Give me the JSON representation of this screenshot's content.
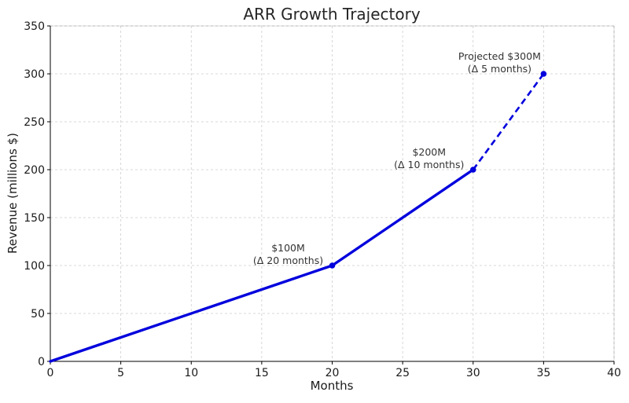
{
  "chart_data": {
    "type": "line",
    "title": "ARR Growth Trajectory",
    "xlabel": "Months",
    "ylabel": "Revenue (millions $)",
    "xlim": [
      0,
      40
    ],
    "ylim": [
      0,
      350
    ],
    "xticks": [
      0,
      5,
      10,
      15,
      20,
      25,
      30,
      35,
      40
    ],
    "yticks": [
      0,
      50,
      100,
      150,
      200,
      250,
      300,
      350
    ],
    "grid": true,
    "line_color": "#0000dd",
    "series": [
      {
        "style": "solid",
        "points": [
          {
            "x": 0,
            "y": 0
          },
          {
            "x": 20,
            "y": 100
          },
          {
            "x": 30,
            "y": 200
          }
        ]
      },
      {
        "style": "dashed",
        "points": [
          {
            "x": 30,
            "y": 200
          },
          {
            "x": 35,
            "y": 300
          }
        ]
      }
    ],
    "annotations": [
      {
        "x": 20,
        "y": 100,
        "lines": [
          "$100M",
          "(Δ 20 months)"
        ]
      },
      {
        "x": 30,
        "y": 200,
        "lines": [
          "$200M",
          "(Δ 10 months)"
        ]
      },
      {
        "x": 35,
        "y": 300,
        "lines": [
          "Projected $300M",
          "(Δ 5 months)"
        ]
      }
    ]
  }
}
